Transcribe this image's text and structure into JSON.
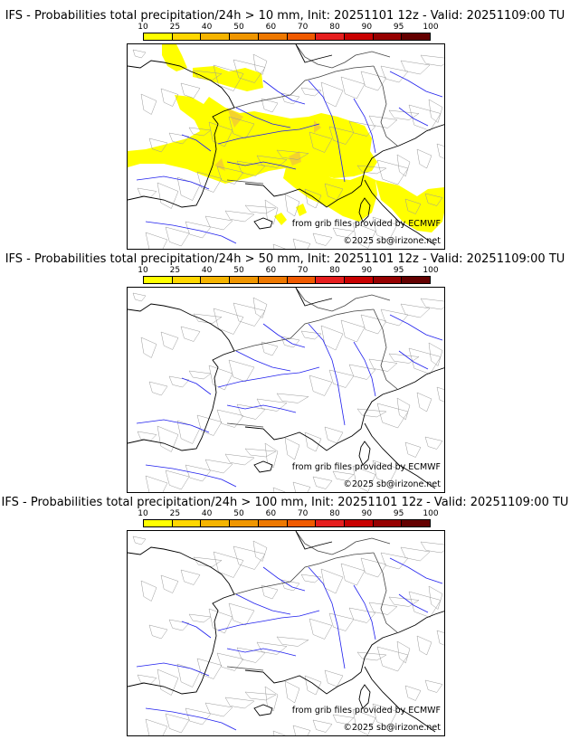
{
  "panels": [
    {
      "title": "IFS - Probabilities total precipitation/24h > 10 mm, Init: 20251101 12z - Valid: 20251109:00 TU",
      "has_precip": true
    },
    {
      "title": "IFS - Probabilities total precipitation/24h > 50 mm, Init: 20251101 12z - Valid: 20251109:00 TU",
      "has_precip": false
    },
    {
      "title": "IFS - Probabilities total precipitation/24h > 100 mm, Init: 20251101 12z - Valid: 20251109:00 TU",
      "has_precip": false
    }
  ],
  "colorbar": {
    "ticks": [
      "10",
      "25",
      "40",
      "50",
      "60",
      "70",
      "80",
      "90",
      "95",
      "100"
    ],
    "colors": [
      "#ffff00",
      "#ffd700",
      "#f5b400",
      "#f09600",
      "#ee7800",
      "#f05a00",
      "#e61e1e",
      "#c80000",
      "#960000",
      "#640000"
    ]
  },
  "credits": {
    "grib": "from grib files provided by ECMWF",
    "copyright": "©2025 sb@irizone.net"
  }
}
